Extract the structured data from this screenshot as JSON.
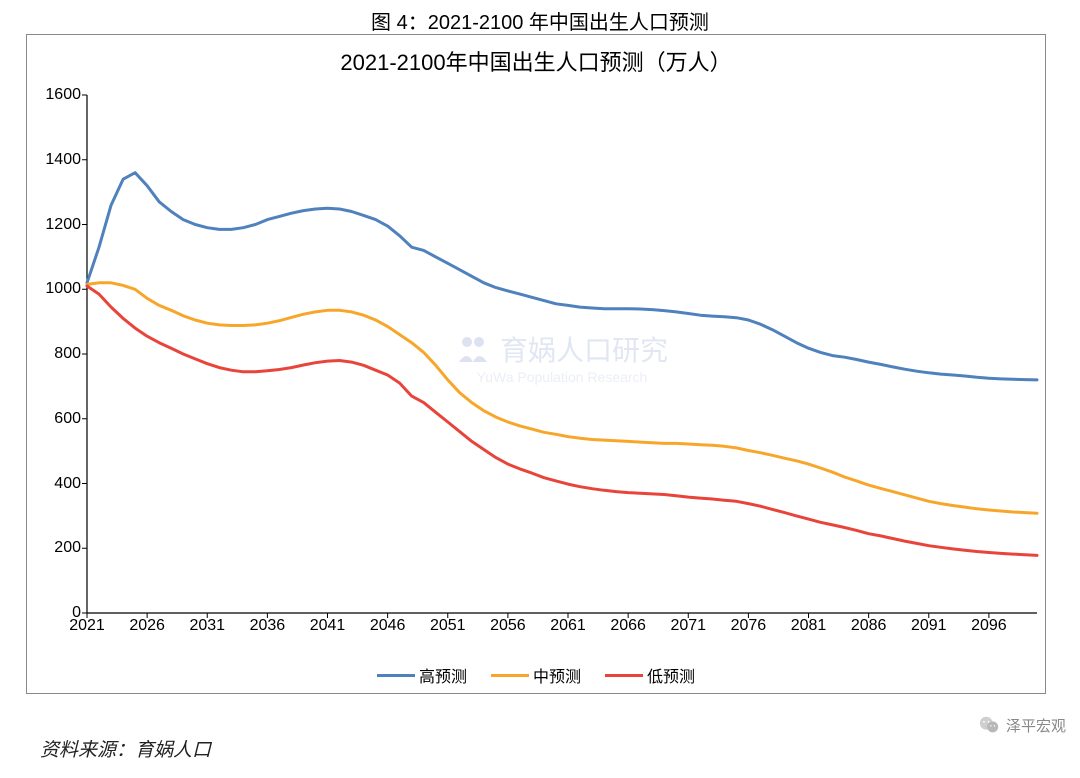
{
  "caption": "图 4：2021-2100 年中国出生人口预测",
  "chart": {
    "type": "line",
    "title": "2021-2100年中国出生人口预测（万人）",
    "title_fontsize": 22,
    "background_color": "#ffffff",
    "border_color": "#888888",
    "axis_color": "#000000",
    "tick_fontsize": 16,
    "line_width": 3,
    "xlim": [
      2021,
      2100
    ],
    "ylim": [
      0,
      1600
    ],
    "xtick_step": 5,
    "ytick_step": 200,
    "xticks": [
      2021,
      2026,
      2031,
      2036,
      2041,
      2046,
      2051,
      2056,
      2061,
      2066,
      2071,
      2076,
      2081,
      2086,
      2091,
      2096
    ],
    "yticks": [
      0,
      200,
      400,
      600,
      800,
      1000,
      1200,
      1400,
      1600
    ],
    "years": [
      2021,
      2022,
      2023,
      2024,
      2025,
      2026,
      2027,
      2028,
      2029,
      2030,
      2031,
      2032,
      2033,
      2034,
      2035,
      2036,
      2037,
      2038,
      2039,
      2040,
      2041,
      2042,
      2043,
      2044,
      2045,
      2046,
      2047,
      2048,
      2049,
      2050,
      2051,
      2052,
      2053,
      2054,
      2055,
      2056,
      2057,
      2058,
      2059,
      2060,
      2061,
      2062,
      2063,
      2064,
      2065,
      2066,
      2067,
      2068,
      2069,
      2070,
      2071,
      2072,
      2073,
      2074,
      2075,
      2076,
      2077,
      2078,
      2079,
      2080,
      2081,
      2082,
      2083,
      2084,
      2085,
      2086,
      2087,
      2088,
      2089,
      2090,
      2091,
      2092,
      2093,
      2094,
      2095,
      2096,
      2097,
      2098,
      2099,
      2100
    ],
    "series": [
      {
        "key": "high",
        "label": "高预测",
        "color": "#4f81bd",
        "values": [
          1020,
          1130,
          1260,
          1340,
          1360,
          1320,
          1270,
          1240,
          1215,
          1200,
          1190,
          1185,
          1185,
          1190,
          1200,
          1215,
          1225,
          1235,
          1243,
          1248,
          1250,
          1248,
          1240,
          1228,
          1215,
          1195,
          1165,
          1130,
          1120,
          1100,
          1080,
          1060,
          1040,
          1020,
          1005,
          995,
          985,
          975,
          965,
          955,
          950,
          945,
          942,
          940,
          940,
          940,
          939,
          937,
          934,
          930,
          925,
          920,
          917,
          915,
          912,
          905,
          892,
          875,
          855,
          835,
          818,
          805,
          795,
          790,
          783,
          775,
          768,
          760,
          753,
          747,
          742,
          738,
          735,
          732,
          728,
          725,
          723,
          722,
          721,
          720
        ]
      },
      {
        "key": "mid",
        "label": "中预测",
        "color": "#f8a62a",
        "values": [
          1015,
          1020,
          1020,
          1012,
          1000,
          972,
          950,
          935,
          918,
          905,
          895,
          890,
          888,
          888,
          890,
          895,
          903,
          913,
          923,
          930,
          935,
          935,
          930,
          920,
          905,
          885,
          860,
          835,
          805,
          765,
          720,
          680,
          650,
          625,
          605,
          590,
          578,
          568,
          558,
          552,
          545,
          540,
          536,
          534,
          532,
          530,
          528,
          526,
          524,
          524,
          522,
          520,
          518,
          515,
          510,
          502,
          495,
          487,
          478,
          470,
          460,
          448,
          435,
          420,
          408,
          395,
          385,
          375,
          365,
          355,
          345,
          338,
          332,
          327,
          322,
          318,
          315,
          312,
          310,
          308
        ]
      },
      {
        "key": "low",
        "label": "低预测",
        "color": "#e8443a",
        "values": [
          1010,
          985,
          945,
          910,
          880,
          855,
          835,
          818,
          800,
          785,
          770,
          758,
          750,
          745,
          745,
          748,
          752,
          758,
          766,
          773,
          778,
          780,
          775,
          765,
          750,
          735,
          710,
          670,
          650,
          620,
          590,
          560,
          530,
          505,
          480,
          460,
          445,
          432,
          418,
          408,
          398,
          390,
          384,
          379,
          375,
          372,
          370,
          368,
          366,
          362,
          358,
          355,
          352,
          348,
          345,
          338,
          330,
          320,
          310,
          300,
          290,
          280,
          272,
          264,
          255,
          245,
          238,
          230,
          222,
          215,
          208,
          203,
          198,
          194,
          190,
          187,
          184,
          182,
          180,
          178
        ]
      }
    ],
    "legend_position": "bottom",
    "legend_fontsize": 16
  },
  "watermark": {
    "main": "育娲人口研究",
    "sub": "YuWa Population Research",
    "color": "rgba(120,140,200,0.22)"
  },
  "source": {
    "prefix": "资料来源：",
    "text": "育娲人口"
  },
  "attribution": {
    "prefix": "",
    "name": "泽平宏观",
    "icon_color": "#9aca3c"
  }
}
